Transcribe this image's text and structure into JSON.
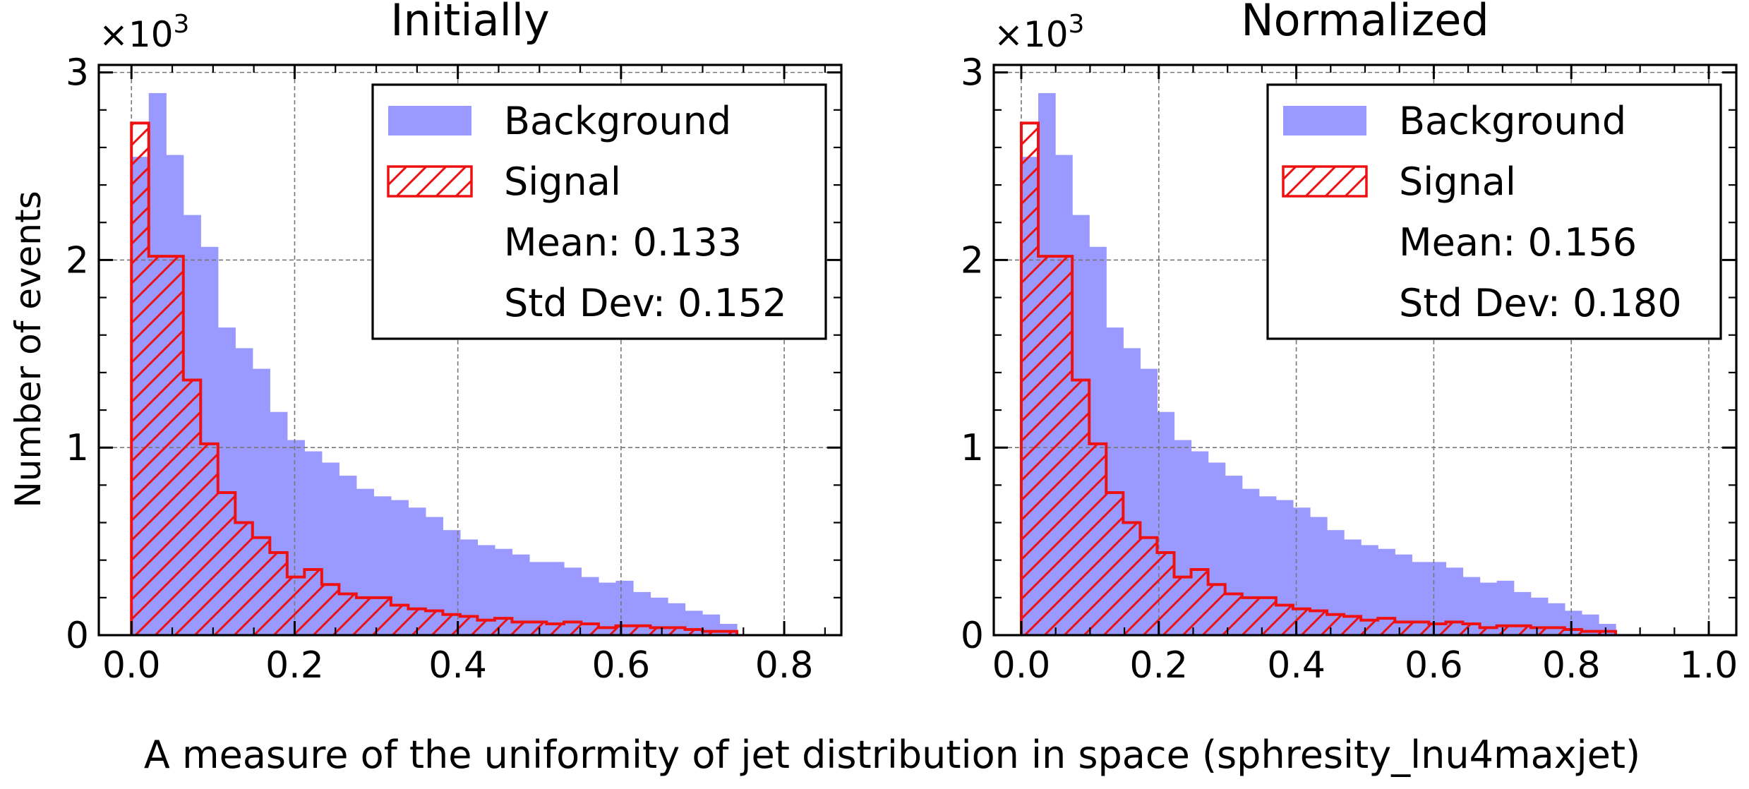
{
  "figure": {
    "xlabel": "A measure of the uniformity of jet distribution in space (sphresity_lnu4maxjet)",
    "ylabel": "Number of events",
    "multiplier_base": "×10",
    "multiplier_exp": "3"
  },
  "colors": {
    "background": "#9999ff",
    "signal": "#ee1111",
    "grid": "#777777"
  },
  "legend_labels": {
    "background": "Background",
    "signal": "Signal"
  },
  "chart_data": [
    {
      "type": "histogram",
      "title": "Initially",
      "xlim": [
        -0.04,
        0.87
      ],
      "ylim": [
        0,
        3040
      ],
      "xticks": [
        0.0,
        0.2,
        0.4,
        0.6,
        0.8
      ],
      "xtick_labels": [
        "0.0",
        "0.2",
        "0.4",
        "0.6",
        "0.8"
      ],
      "yticks": [
        0,
        1000,
        2000,
        3000
      ],
      "ytick_labels": [
        "0",
        "1",
        "2",
        "3"
      ],
      "grid": true,
      "legend_position": "top-right",
      "stats": {
        "mean": "Mean: 0.133",
        "std": "Std Dev: 0.152"
      },
      "background": {
        "name": "Background",
        "bin_start": 0.0,
        "bin_width": 0.0212,
        "counts": [
          2550,
          2890,
          2560,
          2240,
          2070,
          1640,
          1530,
          1420,
          1190,
          1040,
          980,
          920,
          850,
          780,
          740,
          720,
          680,
          630,
          560,
          510,
          480,
          460,
          430,
          390,
          390,
          360,
          310,
          280,
          290,
          230,
          200,
          170,
          130,
          110,
          60
        ]
      },
      "signal": {
        "name": "Signal",
        "bin_start": 0.0,
        "bin_width": 0.0212,
        "counts": [
          2730,
          2020,
          2020,
          1360,
          1020,
          760,
          600,
          520,
          440,
          310,
          350,
          270,
          220,
          200,
          200,
          160,
          140,
          130,
          110,
          100,
          80,
          90,
          70,
          70,
          60,
          70,
          60,
          40,
          50,
          50,
          40,
          40,
          30,
          20,
          20
        ]
      }
    },
    {
      "type": "histogram",
      "title": "Normalized",
      "xlim": [
        -0.04,
        1.04
      ],
      "ylim": [
        0,
        3040
      ],
      "xticks": [
        0.0,
        0.2,
        0.4,
        0.6,
        0.8,
        1.0
      ],
      "xtick_labels": [
        "0.0",
        "0.2",
        "0.4",
        "0.6",
        "0.8",
        "1.0"
      ],
      "yticks": [
        0,
        1000,
        2000,
        3000
      ],
      "ytick_labels": [
        "0",
        "1",
        "2",
        "3"
      ],
      "grid": true,
      "legend_position": "top-right",
      "stats": {
        "mean": "Mean: 0.156",
        "std": "Std Dev: 0.180"
      },
      "background": {
        "name": "Background",
        "bin_start": 0.0,
        "bin_width": 0.0247,
        "counts": [
          2550,
          2890,
          2560,
          2240,
          2070,
          1640,
          1530,
          1420,
          1190,
          1040,
          980,
          920,
          850,
          780,
          740,
          720,
          680,
          630,
          560,
          510,
          480,
          460,
          430,
          390,
          390,
          360,
          310,
          280,
          290,
          230,
          200,
          170,
          130,
          110,
          60
        ]
      },
      "signal": {
        "name": "Signal",
        "bin_start": 0.0,
        "bin_width": 0.0247,
        "counts": [
          2730,
          2020,
          2020,
          1360,
          1020,
          760,
          600,
          520,
          440,
          310,
          350,
          270,
          220,
          200,
          200,
          160,
          140,
          130,
          110,
          100,
          80,
          90,
          70,
          70,
          60,
          70,
          60,
          40,
          50,
          50,
          40,
          40,
          30,
          20,
          20
        ]
      }
    }
  ]
}
